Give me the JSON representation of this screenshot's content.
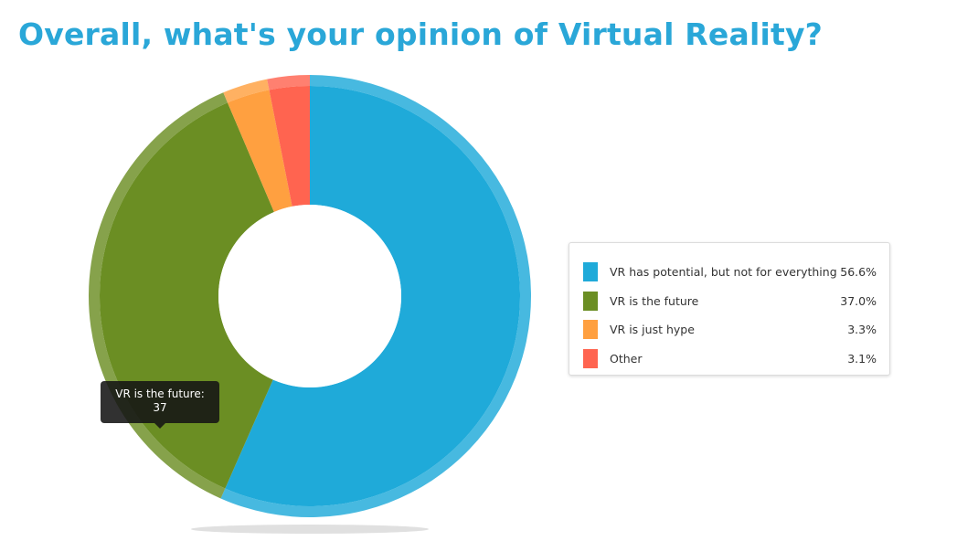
{
  "title": "Overall, what's your opinion of Virtual Reality?",
  "chart_data": {
    "type": "pie",
    "subtype": "donut",
    "title": "Overall, what's your opinion of Virtual Reality?",
    "categories": [
      "VR has potential, but not for everything",
      "VR is the future",
      "VR is just hype",
      "Other"
    ],
    "values": [
      56.6,
      37.0,
      3.3,
      3.1
    ],
    "value_labels": [
      "56.6%",
      "37.0%",
      "3.3%",
      "3.1%"
    ],
    "colors": [
      "#1faad9",
      "#6b8e23",
      "#ffa040",
      "#ff6450"
    ],
    "legend_position": "right"
  },
  "tooltip": {
    "label": "VR is the future:",
    "value": "37"
  }
}
